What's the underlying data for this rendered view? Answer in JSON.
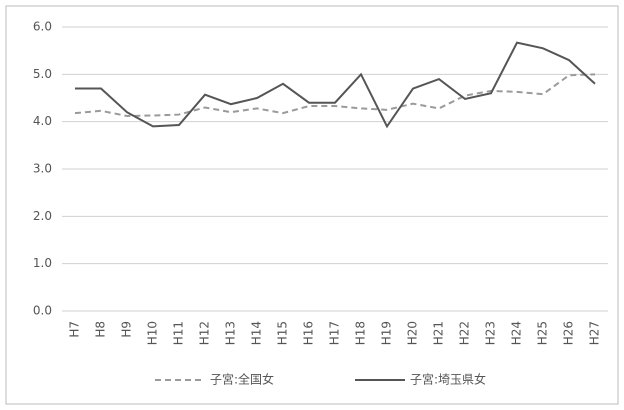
{
  "chart_data": {
    "type": "line",
    "categories": [
      "H7",
      "H8",
      "H9",
      "H10",
      "H11",
      "H12",
      "H13",
      "H14",
      "H15",
      "H16",
      "H17",
      "H18",
      "H19",
      "H20",
      "H21",
      "H22",
      "H23",
      "H24",
      "H25",
      "H26",
      "H27"
    ],
    "series": [
      {
        "name": "子宮:全国女",
        "color": "#9a9a9a",
        "dashed": true,
        "values": [
          4.18,
          4.23,
          4.12,
          4.13,
          4.15,
          4.3,
          4.2,
          4.28,
          4.18,
          4.33,
          4.33,
          4.28,
          4.25,
          4.38,
          4.28,
          4.55,
          4.65,
          4.63,
          4.58,
          4.98,
          5.0
        ]
      },
      {
        "name": "子宮:埼玉県女",
        "color": "#555555",
        "dashed": false,
        "values": [
          4.7,
          4.7,
          4.2,
          3.9,
          3.93,
          4.57,
          4.37,
          4.5,
          4.8,
          4.4,
          4.4,
          5.0,
          3.9,
          4.7,
          4.9,
          4.48,
          4.6,
          5.67,
          5.55,
          5.3,
          4.8
        ]
      }
    ],
    "ylim": [
      0,
      6
    ],
    "yticks": [
      {
        "value": 0,
        "label": "0.0"
      },
      {
        "value": 1,
        "label": "1.0"
      },
      {
        "value": 2,
        "label": "2.0"
      },
      {
        "value": 3,
        "label": "3.0"
      },
      {
        "value": 4,
        "label": "4.0"
      },
      {
        "value": 5,
        "label": "5.0"
      },
      {
        "value": 6,
        "label": "6.0"
      }
    ],
    "grid": true,
    "legend": "bottom"
  }
}
